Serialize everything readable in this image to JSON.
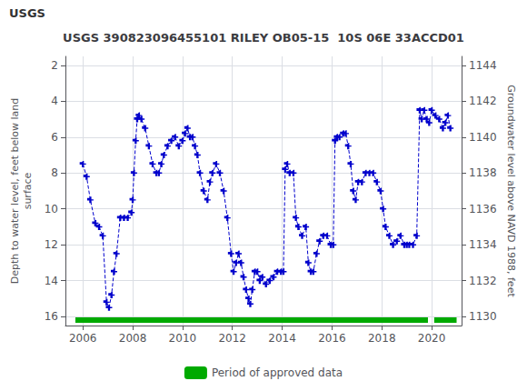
{
  "chart_data": {
    "type": "line",
    "title": "USGS 390823096455101 RILEY OB05-15  10S 06E 33ACCD01",
    "annotations": [
      "USGS"
    ],
    "ylabel": "Depth to water level, feet below land\nsurface",
    "y2label": "Groundwater level above NAVD 1988, feet",
    "xlim": [
      2005.3,
      2021.2
    ],
    "xticks": [
      2006,
      2008,
      2010,
      2012,
      2014,
      2016,
      2018,
      2020
    ],
    "ylim": [
      16.5,
      1.5
    ],
    "yticks": [
      2,
      4,
      6,
      8,
      10,
      12,
      14,
      16
    ],
    "y2lim": [
      1129.5,
      1144.5
    ],
    "y2ticks": [
      1130,
      1132,
      1134,
      1136,
      1138,
      1140,
      1142,
      1144
    ],
    "grid": true,
    "legend": "bottom",
    "color": "#0000cc",
    "marker": "plus",
    "line_style": "dashed",
    "x": [
      2006.0,
      2006.15,
      2006.3,
      2006.5,
      2006.65,
      2006.8,
      2006.95,
      2007.05,
      2007.15,
      2007.25,
      2007.35,
      2007.5,
      2007.65,
      2007.8,
      2007.95,
      2008.0,
      2008.05,
      2008.12,
      2008.18,
      2008.25,
      2008.35,
      2008.5,
      2008.65,
      2008.8,
      2008.95,
      2009.05,
      2009.15,
      2009.25,
      2009.4,
      2009.55,
      2009.7,
      2009.85,
      2010.0,
      2010.1,
      2010.2,
      2010.3,
      2010.4,
      2010.5,
      2010.6,
      2010.7,
      2010.85,
      2011.0,
      2011.1,
      2011.2,
      2011.35,
      2011.5,
      2011.65,
      2011.8,
      2011.95,
      2012.05,
      2012.15,
      2012.25,
      2012.35,
      2012.45,
      2012.55,
      2012.65,
      2012.72,
      2012.8,
      2012.9,
      2013.0,
      2013.1,
      2013.2,
      2013.35,
      2013.5,
      2013.65,
      2013.8,
      2013.95,
      2014.05,
      2014.12,
      2014.2,
      2014.3,
      2014.45,
      2014.55,
      2014.65,
      2014.8,
      2014.95,
      2015.05,
      2015.15,
      2015.25,
      2015.38,
      2015.5,
      2015.65,
      2015.8,
      2015.95,
      2016.05,
      2016.12,
      2016.2,
      2016.3,
      2016.45,
      2016.55,
      2016.65,
      2016.75,
      2016.85,
      2016.95,
      2017.05,
      2017.2,
      2017.35,
      2017.5,
      2017.65,
      2017.8,
      2017.95,
      2018.05,
      2018.15,
      2018.3,
      2018.45,
      2018.6,
      2018.75,
      2018.9,
      2019.0,
      2019.1,
      2019.25,
      2019.4,
      2019.52,
      2019.6,
      2019.7,
      2019.8,
      2019.9,
      2020.0,
      2020.15,
      2020.3,
      2020.45,
      2020.55,
      2020.65,
      2020.75
    ],
    "values": [
      7.5,
      8.2,
      9.5,
      10.8,
      11.0,
      11.5,
      15.2,
      15.5,
      14.8,
      13.5,
      12.5,
      10.5,
      10.5,
      10.5,
      10.2,
      9.5,
      8.0,
      6.2,
      5.0,
      4.8,
      5.0,
      5.5,
      6.5,
      7.5,
      8.0,
      8.0,
      7.5,
      7.0,
      6.5,
      6.2,
      6.0,
      6.5,
      6.2,
      5.8,
      5.5,
      6.0,
      6.0,
      6.5,
      7.0,
      8.0,
      9.0,
      9.5,
      8.5,
      8.0,
      7.5,
      8.0,
      9.0,
      10.5,
      12.5,
      13.5,
      13.0,
      12.5,
      13.0,
      13.8,
      14.5,
      15.0,
      15.3,
      14.5,
      13.5,
      13.5,
      14.0,
      13.8,
      14.2,
      14.0,
      13.8,
      13.5,
      13.5,
      13.5,
      7.8,
      7.5,
      8.0,
      8.0,
      10.5,
      11.0,
      11.5,
      11.0,
      13.0,
      13.5,
      13.5,
      12.5,
      11.8,
      11.5,
      11.5,
      12.0,
      12.0,
      6.2,
      6.0,
      6.0,
      5.8,
      5.8,
      6.5,
      7.5,
      9.0,
      9.5,
      8.5,
      8.5,
      8.0,
      8.0,
      8.0,
      8.5,
      9.0,
      10.0,
      11.0,
      11.5,
      12.0,
      11.8,
      11.5,
      12.0,
      12.0,
      12.0,
      12.0,
      11.5,
      4.5,
      5.0,
      4.5,
      5.0,
      5.2,
      4.5,
      4.8,
      5.0,
      5.5,
      5.2,
      4.8,
      5.5
    ],
    "series": [
      {
        "name": "Period of approved data",
        "type": "period",
        "color": "#00aa00",
        "ranges": [
          [
            2005.7,
            2019.85
          ],
          [
            2020.1,
            2021.0
          ]
        ]
      }
    ]
  }
}
